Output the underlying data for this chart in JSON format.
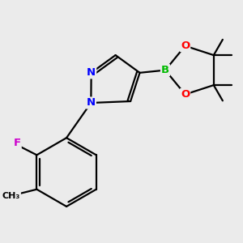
{
  "background_color": "#ebebeb",
  "bond_color": "#000000",
  "bond_width": 1.6,
  "atom_colors": {
    "N": "#0000ff",
    "B": "#00bb00",
    "O": "#ff0000",
    "F": "#cc00cc",
    "C": "#000000"
  }
}
